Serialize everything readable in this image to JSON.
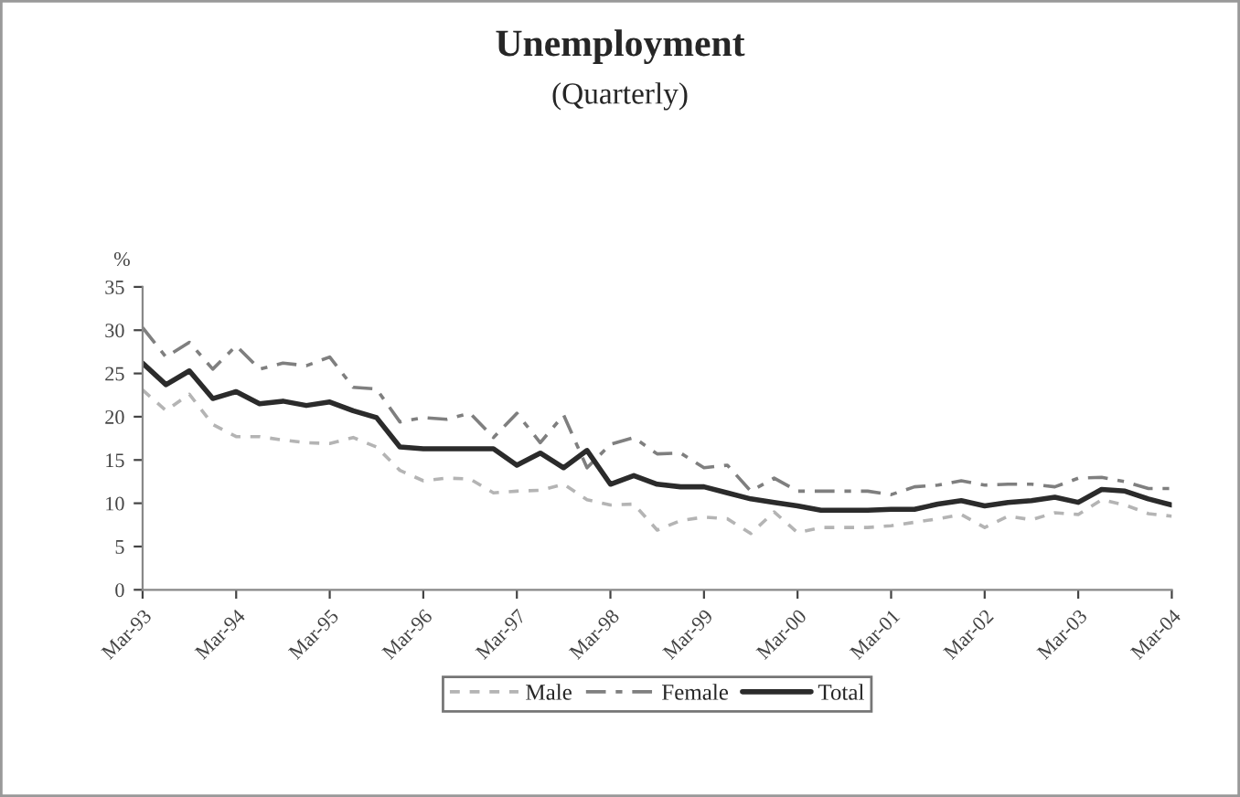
{
  "chart_data": {
    "type": "line",
    "title": "Unemployment",
    "subtitle": "(Quarterly)",
    "ylabel": "%",
    "categories": [
      "Mar-93",
      null,
      null,
      null,
      "Mar-94",
      null,
      null,
      null,
      "Mar-95",
      null,
      null,
      null,
      "Mar-96",
      null,
      null,
      null,
      "Mar-97",
      null,
      null,
      null,
      "Mar-98",
      null,
      null,
      null,
      "Mar-99",
      null,
      null,
      null,
      "Mar-00",
      null,
      null,
      null,
      "Mar-01",
      null,
      null,
      null,
      "Mar-02",
      null,
      null,
      null,
      "Mar-03",
      null,
      null,
      null,
      "Mar-04"
    ],
    "series": [
      {
        "name": "Male",
        "color": "#b4b4b4",
        "line_style": "dotted",
        "values": [
          23.1,
          20.7,
          22.6,
          19.1,
          17.7,
          17.7,
          17.3,
          17.0,
          16.9,
          17.6,
          16.5,
          13.8,
          12.6,
          12.9,
          12.8,
          11.2,
          11.4,
          11.5,
          12.2,
          10.4,
          9.8,
          9.9,
          6.9,
          8.0,
          8.4,
          8.2,
          6.5,
          9.0,
          6.6,
          7.2,
          7.2,
          7.2,
          7.4,
          7.8,
          8.2,
          8.7,
          7.2,
          8.5,
          8.1,
          8.9,
          8.7,
          10.4,
          9.8,
          8.8,
          8.5
        ]
      },
      {
        "name": "Female",
        "color": "#7f7f7f",
        "line_style": "dashed",
        "values": [
          30.3,
          26.9,
          28.6,
          25.5,
          28.2,
          25.5,
          26.2,
          25.9,
          26.9,
          23.4,
          23.2,
          19.4,
          19.9,
          19.7,
          20.4,
          17.6,
          20.4,
          17.0,
          20.2,
          14.1,
          16.8,
          17.6,
          15.7,
          15.8,
          14.1,
          14.4,
          11.4,
          12.9,
          11.4,
          11.4,
          11.4,
          11.4,
          11.0,
          11.9,
          12.1,
          12.6,
          12.1,
          12.2,
          12.2,
          11.9,
          12.9,
          13.0,
          12.5,
          11.7,
          11.7
        ]
      },
      {
        "name": "Total",
        "color": "#2b2b2b",
        "line_style": "solid",
        "values": [
          26.2,
          23.7,
          25.3,
          22.1,
          22.9,
          21.5,
          21.8,
          21.3,
          21.7,
          20.7,
          19.9,
          16.5,
          16.3,
          16.3,
          16.3,
          16.3,
          14.4,
          15.8,
          14.1,
          16.1,
          12.2,
          13.2,
          12.2,
          11.9,
          11.9,
          11.2,
          10.5,
          10.1,
          9.7,
          9.2,
          9.2,
          9.2,
          9.3,
          9.3,
          9.9,
          10.3,
          9.7,
          10.1,
          10.3,
          10.7,
          10.1,
          11.6,
          11.4,
          10.5,
          9.8
        ]
      }
    ],
    "ylim": [
      0,
      35
    ],
    "yticks": [
      0,
      5,
      10,
      15,
      20,
      25,
      30,
      35
    ],
    "grid": false,
    "legend": "bottom",
    "marker": "none"
  }
}
